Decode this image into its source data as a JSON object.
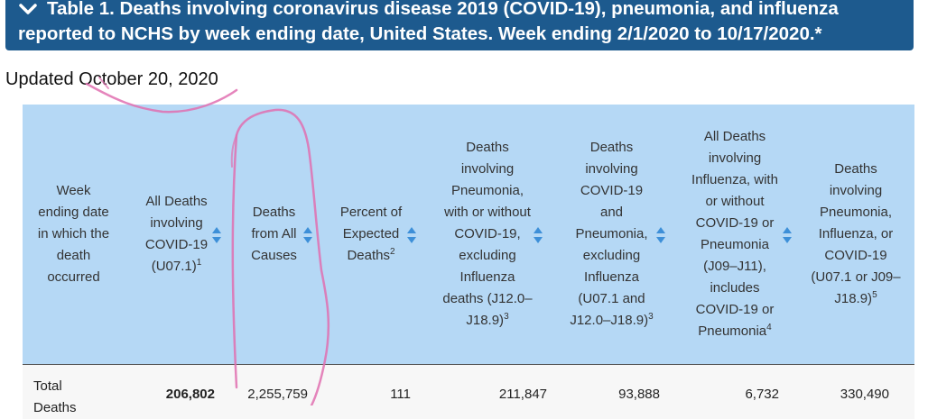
{
  "banner": {
    "line1": "Table 1. Deaths involving coronavirus disease 2019 (COVID-19), pneumonia, and influenza",
    "line2": "reported to NCHS by week ending date, United States. Week ending 2/1/2020 to 10/17/2020.*"
  },
  "updated": "Updated October 20, 2020",
  "columns": [
    {
      "label": "Week ending date in which the death occurred"
    },
    {
      "label": "All Deaths involving COVID-19 (U07.1)",
      "sup": "1"
    },
    {
      "label": "Deaths from All Causes"
    },
    {
      "label": "Percent of Expected Deaths",
      "sup": "2"
    },
    {
      "label": "Deaths involving Pneumonia, with or without COVID-19, excluding Influenza deaths (J12.0–J18.9)",
      "sup": "3"
    },
    {
      "label": "Deaths involving COVID-19 and Pneumonia, excluding Influenza (U07.1 and J12.0–J18.9)",
      "sup": "3"
    },
    {
      "label": "All Deaths involving Influenza, with or without COVID-19 or Pneumonia (J09–J11), includes COVID-19 or Pneumonia",
      "sup": "4"
    },
    {
      "label": "Deaths involving Pneumonia, Influenza, or COVID-19 (U07.1 or J09–J18.9)",
      "sup": "5"
    }
  ],
  "rows": [
    {
      "label": "Total Deaths",
      "values": [
        "206,802",
        "2,255,759",
        "111",
        "211,847",
        "93,888",
        "6,732",
        "330,490"
      ]
    }
  ],
  "colors": {
    "banner": "#1d5a8e",
    "header": "#b5d8f5",
    "sort_icon": "#3d8fd8",
    "annotation": "#e070b0"
  }
}
